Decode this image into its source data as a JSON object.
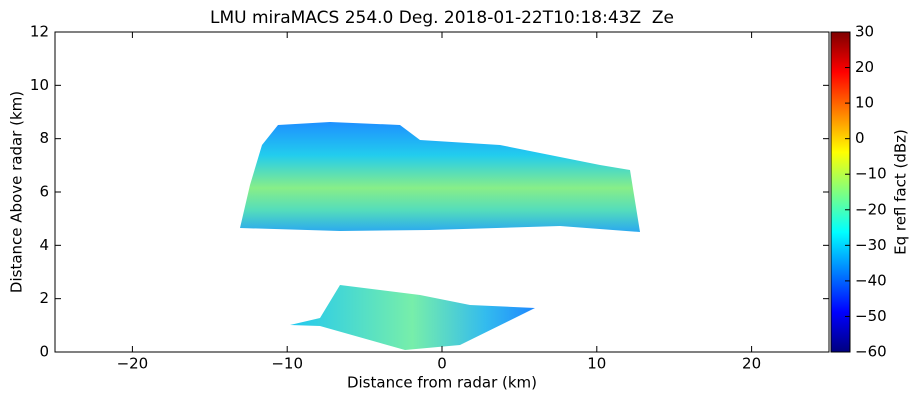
{
  "chart_data": {
    "type": "heatmap",
    "title": "LMU miraMACS 254.0 Deg. 2018-01-22T10:18:43Z  Ze",
    "xlabel": "Distance from radar (km)",
    "ylabel": "Distance Above radar  (km)",
    "xlim": [
      -25,
      25
    ],
    "ylim": [
      0,
      12
    ],
    "xticks": [
      {
        "value": -20,
        "label": "−20"
      },
      {
        "value": -10,
        "label": "−10"
      },
      0,
      10,
      20
    ],
    "yticks": [
      0,
      2,
      4,
      6,
      8,
      10,
      12
    ],
    "colorbar": {
      "label": "Eq refl fact (dBz)",
      "colormap": "jet",
      "lim": [
        -60,
        30
      ],
      "ticks": [
        {
          "value": -60,
          "label": "−60"
        },
        {
          "value": -50,
          "label": "−50"
        },
        {
          "value": -40,
          "label": "−40"
        },
        {
          "value": -30,
          "label": "−30"
        },
        {
          "value": -20,
          "label": "−20"
        },
        {
          "value": -10,
          "label": "−10"
        },
        0,
        10,
        20,
        30
      ]
    }
  }
}
